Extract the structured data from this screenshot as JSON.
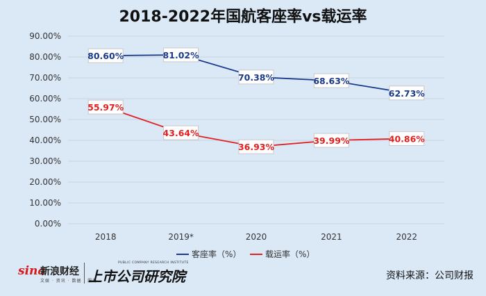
{
  "title": "2018-2022年国航客座率vs载运率",
  "chart_data": {
    "type": "line",
    "categories": [
      "2018",
      "2019*",
      "2020",
      "2021",
      "2022"
    ],
    "y_ticks": [
      "0.00%",
      "10.00%",
      "20.00%",
      "30.00%",
      "40.00%",
      "50.00%",
      "60.00%",
      "70.00%",
      "80.00%",
      "90.00%"
    ],
    "ylim": [
      0,
      90
    ],
    "grid": true,
    "legend_position": "bottom",
    "series": [
      {
        "name": "客座率（%）",
        "color": "#1a3a8c",
        "values": [
          80.6,
          81.02,
          70.38,
          68.63,
          62.73
        ],
        "labels": [
          "80.60%",
          "81.02%",
          "70.38%",
          "68.63%",
          "62.73%"
        ]
      },
      {
        "name": "载运率（%）",
        "color": "#e0201f",
        "values": [
          55.97,
          43.64,
          36.93,
          39.99,
          40.86
        ],
        "labels": [
          "55.97%",
          "43.64%",
          "36.93%",
          "39.99%",
          "40.86%"
        ]
      }
    ]
  },
  "footer": {
    "sina_word": "sina",
    "sina_name": "新浪财经",
    "sina_tagline": "文娱 · 资讯 · 数据 · 服务",
    "institute_name": "上市公司研究院",
    "institute_en": "PUBLIC COMPANY RESEARCH INSTITUTE",
    "source": "资料来源：公司财报"
  }
}
